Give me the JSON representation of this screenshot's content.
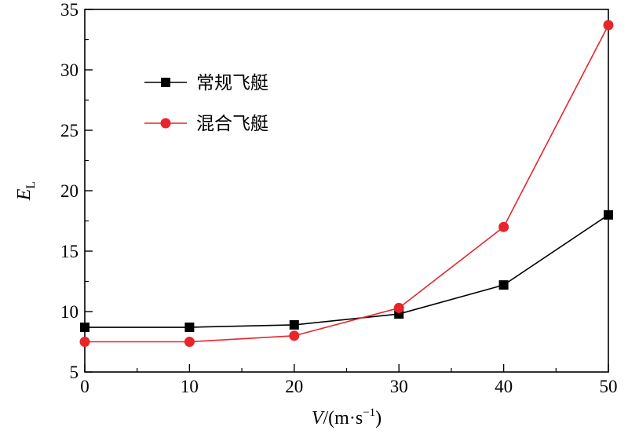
{
  "chart_data": {
    "type": "line",
    "x": [
      0,
      10,
      20,
      30,
      40,
      50
    ],
    "xlim": [
      0,
      50
    ],
    "ylim": [
      5,
      35
    ],
    "xticks": [
      0,
      10,
      20,
      30,
      40,
      50
    ],
    "yticks": [
      5,
      10,
      15,
      20,
      25,
      30,
      35
    ],
    "xlabel": {
      "var": "V",
      "unit_prefix": "/(m·s",
      "unit_sup": "−1",
      "unit_suffix": ")"
    },
    "ylabel": {
      "var": "E",
      "sub": "L"
    },
    "grid": false,
    "legend_position": "upper-left",
    "series": [
      {
        "name": "常规飞艇",
        "color": "#000000",
        "marker": "square",
        "values": [
          8.7,
          8.7,
          8.9,
          9.8,
          12.2,
          18.0
        ]
      },
      {
        "name": "混合飞艇",
        "color": "#e8252a",
        "marker": "circle",
        "values": [
          7.5,
          7.5,
          8.0,
          10.3,
          17.0,
          33.7
        ]
      }
    ]
  }
}
